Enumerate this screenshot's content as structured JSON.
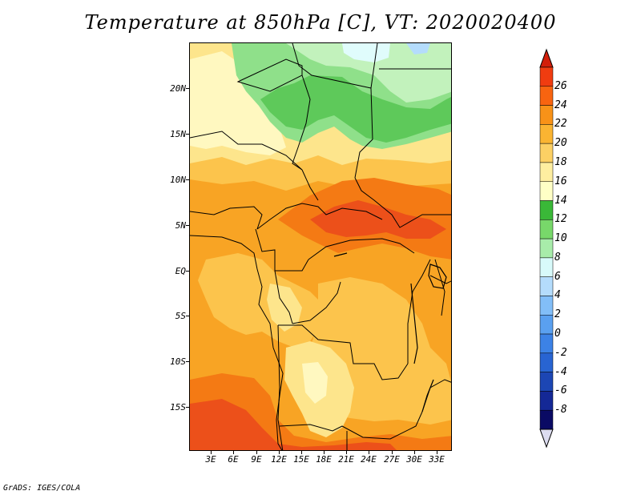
{
  "title": "Temperature at 850hPa [C], VT: 2020020400",
  "credit": "GrADS: IGES/COLA",
  "lat_ticks": [
    "20N",
    "15N",
    "10N",
    "5N",
    "EQ",
    "5S",
    "10S",
    "15S"
  ],
  "lon_ticks": [
    "3E",
    "6E",
    "9E",
    "12E",
    "15E",
    "18E",
    "21E",
    "24E",
    "27E",
    "30E",
    "33E"
  ],
  "colorbar": {
    "labels": [
      "26",
      "24",
      "22",
      "20",
      "18",
      "16",
      "14",
      "12",
      "10",
      "8",
      "6",
      "4",
      "2",
      "0",
      "-2",
      "-4",
      "-6",
      "-8"
    ],
    "colors": [
      "#f03c10",
      "#f86410",
      "#f89218",
      "#fab432",
      "#fcd064",
      "#feeea0",
      "#ffffc6",
      "#3ab838",
      "#78d86a",
      "#a8ecaa",
      "#d8fafa",
      "#b4dcfc",
      "#82bef8",
      "#5aa0f0",
      "#3c82e6",
      "#2864d2",
      "#1c46b4",
      "#142896",
      "#0a0a64"
    ],
    "overflow_high": "#d21e0a",
    "overflow_low": "#dcdcf0"
  },
  "palette": {
    "green_dark": "#5ec95a",
    "green_mid": "#8fe08a",
    "green_light": "#c2f2bc",
    "cyan_light": "#e0fcfc",
    "blue_light": "#b4dcfc",
    "yellow_pale": "#fff8c0",
    "yellow": "#fde58c",
    "orange_light": "#fcc44c",
    "orange": "#f8a424",
    "orange_dark": "#f47a14",
    "red_orange": "#ec501a"
  }
}
